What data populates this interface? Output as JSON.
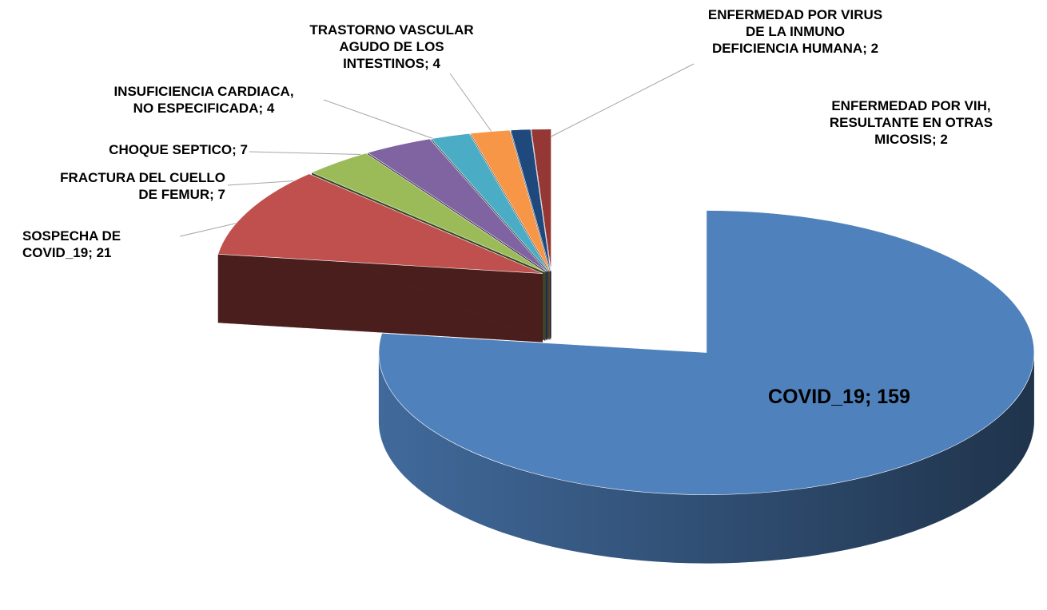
{
  "chart_data": {
    "type": "pie",
    "three_d": true,
    "categories": [
      "COVID_19",
      "SOSPECHA DE\nCOVID_19",
      "FRACTURA DEL CUELLO\nDE FEMUR",
      "CHOQUE SEPTICO",
      "INSUFICIENCIA CARDIACA,\nNO ESPECIFICADA",
      "TRASTORNO VASCULAR\nAGUDO DE LOS\nINTESTINOS",
      "ENFERMEDAD POR VIRUS\nDE LA INMUNO\nDEFICIENCIA HUMANA",
      "ENFERMEDAD POR VIH,\nRESULTANTE EN OTRAS\nMICOSIS"
    ],
    "values": [
      159,
      21,
      7,
      7,
      4,
      4,
      2,
      2
    ],
    "colors": [
      "#4f81bd",
      "#c0504d",
      "#9bbb59",
      "#8064a2",
      "#4bacc6",
      "#f79646",
      "#1f497d",
      "#953735"
    ],
    "label_separator": "; "
  }
}
